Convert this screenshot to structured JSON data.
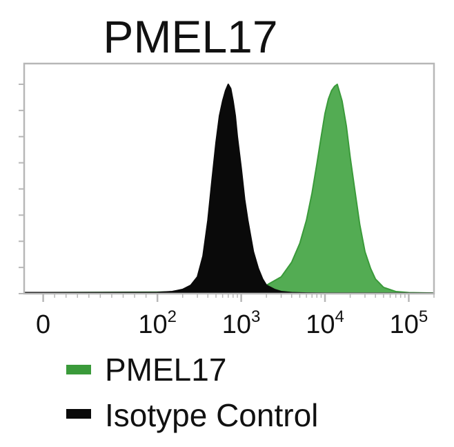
{
  "chart_data": {
    "type": "area",
    "title": "PMEL17",
    "xlabel": "",
    "ylabel": "",
    "x_scale": "biexponential",
    "x_tick_labels": [
      {
        "base": "0",
        "exp": ""
      },
      {
        "base": "10",
        "exp": "2"
      },
      {
        "base": "10",
        "exp": "3"
      },
      {
        "base": "10",
        "exp": "4"
      },
      {
        "base": "10",
        "exp": "5"
      }
    ],
    "x_ticks": [
      0,
      100,
      1000,
      10000,
      100000
    ],
    "xlim": [
      -30,
      200000
    ],
    "ylim": [
      0,
      100
    ],
    "grid": false,
    "legend_position": "bottom",
    "series": [
      {
        "name": "Isotype Control",
        "color": "#0a0a0a",
        "x": [
          -30,
          0,
          50,
          100,
          150,
          200,
          250,
          300,
          350,
          400,
          450,
          500,
          550,
          600,
          650,
          700,
          750,
          800,
          850,
          900,
          1000,
          1100,
          1200,
          1400,
          1600,
          1800,
          2000,
          2500,
          3000,
          4000,
          6000,
          10000,
          200000
        ],
        "y": [
          0.5,
          0.5,
          0.5,
          0.6,
          1,
          2,
          4,
          8,
          18,
          35,
          55,
          72,
          85,
          92,
          97,
          100,
          98,
          92,
          85,
          75,
          60,
          45,
          35,
          20,
          12,
          7,
          4,
          2,
          1,
          0.5,
          0.3,
          0.2,
          0.2
        ]
      },
      {
        "name": "PMEL17",
        "color": "#3a9a3a",
        "x": [
          -30,
          0,
          100,
          200,
          400,
          700,
          1000,
          2000,
          3000,
          4000,
          5000,
          6000,
          7000,
          8000,
          9000,
          10000,
          11000,
          12000,
          13000,
          14000,
          16000,
          18000,
          20000,
          23000,
          26000,
          30000,
          35000,
          40000,
          50000,
          70000,
          100000,
          200000
        ],
        "y": [
          0.5,
          0.5,
          0.7,
          1,
          2,
          2,
          3,
          4,
          8,
          15,
          24,
          35,
          48,
          62,
          75,
          86,
          93,
          97,
          99,
          100,
          92,
          80,
          65,
          48,
          33,
          20,
          12,
          7,
          3,
          1,
          0.5,
          0.3
        ]
      }
    ]
  },
  "legend": [
    {
      "label": "PMEL17",
      "color": "#3a9a3a"
    },
    {
      "label": "Isotype Control",
      "color": "#0a0a0a"
    }
  ]
}
